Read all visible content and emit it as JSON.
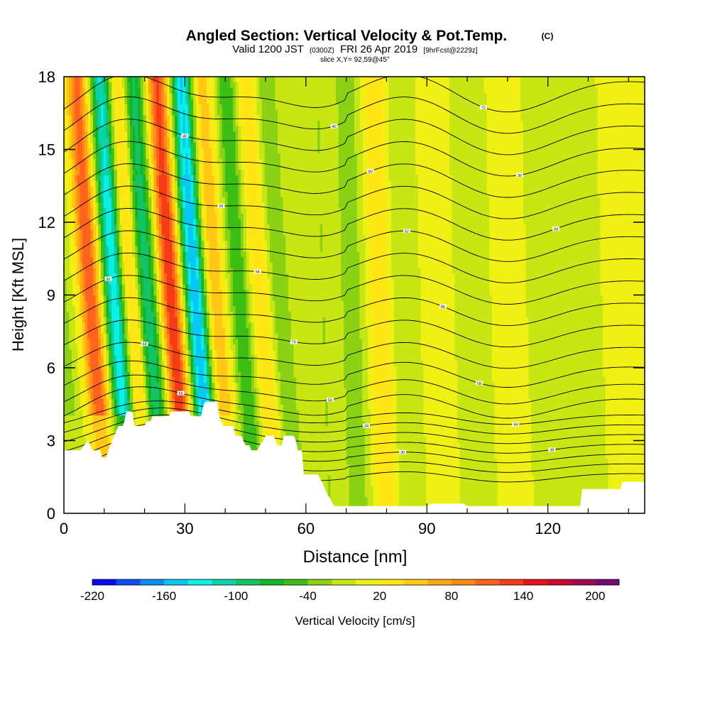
{
  "header": {
    "title": "Angled Section: Vertical Velocity & Pot.Temp.",
    "copyright": "(C)",
    "valid_prefix": "Valid 1200 JST",
    "valid_utc": "(0300Z)",
    "valid_date": "FRI 26 Apr 2019",
    "forecast": "[9hrFcst@2229z]",
    "slice": "slice X,Y= 92,59@45°"
  },
  "chart_data": {
    "type": "heatmap",
    "title": "Angled Section: Vertical Velocity & Pot.Temp.",
    "xlabel": "Distance [nm]",
    "ylabel": "Height [Kft MSL]",
    "xlim": [
      0,
      144
    ],
    "ylim": [
      0,
      18
    ],
    "x_ticks": [
      0,
      30,
      60,
      90,
      120
    ],
    "y_ticks": [
      0,
      3,
      6,
      9,
      12,
      15,
      18
    ],
    "grid": false,
    "colorbar": {
      "label": "Vertical Velocity [cm/s]",
      "tick_labels": [
        "-220",
        "-160",
        "-100",
        "-40",
        "20",
        "80",
        "140",
        "200"
      ],
      "tick_values": [
        -220,
        -160,
        -100,
        -40,
        20,
        80,
        140,
        200
      ],
      "range": [
        -220,
        220
      ],
      "step": 20,
      "colors": [
        "#0a0af0",
        "#0a50f0",
        "#0a8cf5",
        "#0ac8f5",
        "#0af0e6",
        "#0ad2aa",
        "#14c364",
        "#14b428",
        "#3cbe14",
        "#8cd214",
        "#c8e614",
        "#f0f014",
        "#ffe614",
        "#ffc814",
        "#ffaa14",
        "#ff8c14",
        "#ff641e",
        "#f53c14",
        "#e61414",
        "#c80a32",
        "#a00a50",
        "#780a78"
      ]
    },
    "velocity_bands": [
      {
        "x": 3,
        "value": -40
      },
      {
        "x": 11,
        "value": 120
      },
      {
        "x": 17,
        "value": -140
      },
      {
        "x": 21,
        "value": 60
      },
      {
        "x": 25,
        "value": -100
      },
      {
        "x": 31,
        "value": 140
      },
      {
        "x": 37,
        "value": -160
      },
      {
        "x": 42,
        "value": 60
      },
      {
        "x": 48,
        "value": -60
      },
      {
        "x": 53,
        "value": 40
      },
      {
        "x": 58,
        "value": -40
      },
      {
        "x": 66,
        "value": -20
      },
      {
        "x": 73,
        "value": -40
      },
      {
        "x": 80,
        "value": 40
      },
      {
        "x": 86,
        "value": -20
      },
      {
        "x": 94,
        "value": 20
      },
      {
        "x": 103,
        "value": -20
      },
      {
        "x": 112,
        "value": 20
      },
      {
        "x": 121,
        "value": -20
      },
      {
        "x": 131,
        "value": -20
      },
      {
        "x": 139,
        "value": 20
      }
    ],
    "background_value": 0,
    "terrain_kft": [
      [
        0,
        2.6
      ],
      [
        4,
        2.6
      ],
      [
        6,
        3.0
      ],
      [
        7,
        2.6
      ],
      [
        9,
        2.6
      ],
      [
        9.5,
        2.3
      ],
      [
        10.5,
        2.3
      ],
      [
        11,
        2.6
      ],
      [
        12,
        3.0
      ],
      [
        13,
        3.4
      ],
      [
        13.5,
        3.6
      ],
      [
        14.5,
        3.6
      ],
      [
        15,
        3.8
      ],
      [
        15.5,
        4.2
      ],
      [
        17,
        4.2
      ],
      [
        17.5,
        3.6
      ],
      [
        20,
        3.6
      ],
      [
        20.5,
        3.8
      ],
      [
        21.5,
        3.8
      ],
      [
        22,
        4.0
      ],
      [
        26,
        4.0
      ],
      [
        26.5,
        4.2
      ],
      [
        31,
        4.2
      ],
      [
        31.5,
        4.0
      ],
      [
        34,
        4.0
      ],
      [
        34.5,
        4.4
      ],
      [
        35,
        4.6
      ],
      [
        38,
        4.6
      ],
      [
        38.5,
        4.0
      ],
      [
        39.5,
        3.6
      ],
      [
        42,
        3.6
      ],
      [
        42.5,
        3.2
      ],
      [
        44,
        3.2
      ],
      [
        45,
        2.8
      ],
      [
        46,
        2.8
      ],
      [
        46.5,
        2.6
      ],
      [
        48,
        2.6
      ],
      [
        48.5,
        2.8
      ],
      [
        49.5,
        3.0
      ],
      [
        50,
        3.2
      ],
      [
        52,
        3.2
      ],
      [
        52.5,
        3.0
      ],
      [
        53,
        2.8
      ],
      [
        54,
        2.8
      ],
      [
        54.5,
        3.2
      ],
      [
        57,
        3.2
      ],
      [
        57.5,
        3.0
      ],
      [
        58,
        2.6
      ],
      [
        59,
        2.6
      ],
      [
        59.5,
        1.6
      ],
      [
        63,
        1.6
      ],
      [
        64,
        1.3
      ],
      [
        65,
        0.9
      ],
      [
        66,
        0.6
      ],
      [
        67,
        0.3
      ],
      [
        80,
        0.3
      ],
      [
        85,
        0.3
      ],
      [
        90,
        0.3
      ],
      [
        91,
        0.4
      ],
      [
        99,
        0.4
      ],
      [
        100,
        0.3
      ],
      [
        115,
        0.3
      ],
      [
        120,
        0.3
      ],
      [
        128,
        0.3
      ],
      [
        128.5,
        1.0
      ],
      [
        138,
        1.0
      ],
      [
        138.5,
        1.3
      ],
      [
        144,
        1.3
      ]
    ],
    "pot_temp_levels": [
      {
        "base": 1.5,
        "label": "24"
      },
      {
        "base": 1.9,
        "label": "18"
      },
      {
        "base": 2.3,
        "label": "30"
      },
      {
        "base": 2.7,
        "label": "38"
      },
      {
        "base": 3.1,
        "label": "56"
      },
      {
        "base": 3.5,
        "label": "34"
      },
      {
        "base": 3.9,
        "label": "44"
      },
      {
        "base": 4.4,
        "label": "66"
      },
      {
        "base": 5.0,
        "label": "56"
      },
      {
        "base": 5.7,
        "label": "58"
      },
      {
        "base": 6.5,
        "label": "68"
      },
      {
        "base": 7.4,
        "label": "70"
      },
      {
        "base": 8.3,
        "label": "86"
      },
      {
        "base": 9.2,
        "label": "90"
      },
      {
        "base": 10.1,
        "label": "94"
      },
      {
        "base": 11.0,
        "label": "52"
      },
      {
        "base": 11.9,
        "label": "04"
      },
      {
        "base": 12.8,
        "label": "26"
      },
      {
        "base": 13.7,
        "label": "80"
      },
      {
        "base": 14.6,
        "label": "30"
      },
      {
        "base": 15.5,
        "label": "40"
      },
      {
        "base": 16.4,
        "label": "40"
      },
      {
        "base": 17.3,
        "label": "72"
      }
    ]
  }
}
